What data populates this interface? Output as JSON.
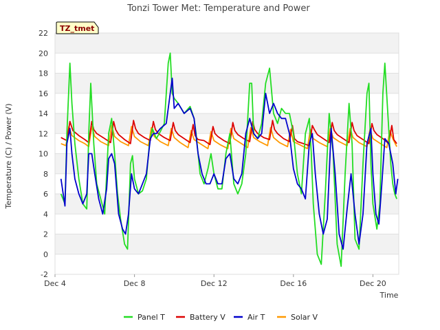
{
  "chart_data": {
    "type": "line",
    "title": "Tonzi Tower Met: Temperature and Power",
    "site_label": "TZ_tmet",
    "xlabel": "Time",
    "ylabel": "Temperature (C) / Power (V)",
    "xlim": [
      4,
      21.3
    ],
    "ylim": [
      -2,
      22
    ],
    "x_ticks": [
      4,
      8,
      12,
      16,
      20
    ],
    "x_tick_labels": [
      "Dec 4",
      "Dec 8",
      "Dec 12",
      "Dec 16",
      "Dec 20"
    ],
    "y_ticks": [
      -2,
      0,
      2,
      4,
      6,
      8,
      10,
      12,
      14,
      16,
      18,
      20,
      22
    ],
    "y_tick_labels": [
      "-2",
      "0",
      "2",
      "4",
      "6",
      "8",
      "10",
      "12",
      "14",
      "16",
      "18",
      "20",
      "22"
    ],
    "grid": "horizontal-bands",
    "legend_position": "bottom",
    "series": [
      {
        "name": "Panel T",
        "color": "#22dd22",
        "x": [
          4.3,
          4.5,
          4.6,
          4.75,
          4.85,
          5.0,
          5.2,
          5.4,
          5.6,
          5.7,
          5.8,
          5.95,
          6.1,
          6.3,
          6.5,
          6.7,
          6.85,
          7.0,
          7.15,
          7.3,
          7.5,
          7.65,
          7.8,
          7.9,
          8.0,
          8.2,
          8.4,
          8.6,
          8.75,
          8.9,
          9.0,
          9.1,
          9.3,
          9.5,
          9.7,
          9.8,
          9.9,
          10.0,
          10.2,
          10.5,
          10.8,
          11.0,
          11.1,
          11.3,
          11.5,
          11.7,
          11.85,
          12.0,
          12.2,
          12.4,
          12.6,
          12.8,
          13.0,
          13.2,
          13.4,
          13.6,
          13.8,
          13.9,
          14.0,
          14.2,
          14.4,
          14.6,
          14.8,
          15.0,
          15.2,
          15.4,
          15.6,
          15.8,
          16.0,
          16.2,
          16.4,
          16.6,
          16.8,
          16.9,
          17.0,
          17.2,
          17.4,
          17.6,
          17.8,
          18.0,
          18.2,
          18.4,
          18.6,
          18.8,
          18.95,
          19.1,
          19.3,
          19.5,
          19.7,
          19.8,
          19.9,
          20.0,
          20.2,
          20.35,
          20.5,
          20.6,
          20.75,
          20.9,
          21.0,
          21.1,
          21.2
        ],
        "values": [
          6.0,
          5.0,
          12.0,
          19.0,
          15.0,
          11.0,
          7.5,
          5.0,
          4.5,
          12.0,
          17.0,
          11.0,
          7.0,
          5.5,
          4.0,
          12.0,
          13.5,
          10.0,
          6.0,
          3.5,
          1.0,
          0.5,
          9.0,
          9.8,
          7.5,
          6.0,
          6.3,
          7.5,
          11.0,
          12.5,
          12.0,
          11.5,
          12.2,
          13.0,
          19.0,
          20.0,
          16.0,
          15.5,
          15.0,
          14.0,
          14.7,
          13.5,
          12.0,
          8.0,
          7.0,
          8.5,
          10.0,
          8.0,
          6.5,
          6.5,
          10.0,
          12.0,
          7.0,
          6.0,
          7.0,
          10.0,
          17.0,
          17.0,
          12.0,
          11.5,
          13.0,
          17.0,
          18.5,
          14.0,
          13.0,
          14.5,
          14.0,
          14.0,
          12.0,
          8.0,
          6.0,
          12.0,
          13.5,
          10.0,
          5.0,
          0.0,
          -1.0,
          6.0,
          14.0,
          10.0,
          1.0,
          -1.2,
          8.0,
          15.0,
          11.0,
          1.5,
          0.5,
          9.0,
          16.0,
          17.0,
          9.0,
          5.0,
          2.5,
          5.0,
          16.0,
          19.0,
          14.0,
          9.0,
          7.0,
          6.0,
          5.5
        ]
      },
      {
        "name": "Battery V",
        "color": "#dd0000",
        "x": [
          4.3,
          4.6,
          4.75,
          4.9,
          5.2,
          5.5,
          5.7,
          5.85,
          5.95,
          6.1,
          6.5,
          6.8,
          6.95,
          7.05,
          7.2,
          7.5,
          7.8,
          7.95,
          8.05,
          8.2,
          8.5,
          8.8,
          8.95,
          9.05,
          9.2,
          9.5,
          9.8,
          9.95,
          10.05,
          10.2,
          10.5,
          10.8,
          10.95,
          11.05,
          11.2,
          11.5,
          11.8,
          11.95,
          12.05,
          12.2,
          12.5,
          12.8,
          12.95,
          13.05,
          13.2,
          13.5,
          13.8,
          13.95,
          14.05,
          14.2,
          14.5,
          14.8,
          14.95,
          15.05,
          15.2,
          15.5,
          15.8,
          15.95,
          16.05,
          16.2,
          16.5,
          16.8,
          16.95,
          17.05,
          17.2,
          17.5,
          17.8,
          17.95,
          18.05,
          18.2,
          18.5,
          18.8,
          18.95,
          19.05,
          19.2,
          19.5,
          19.8,
          19.95,
          20.05,
          20.2,
          20.5,
          20.8,
          20.95,
          21.05,
          21.2
        ],
        "values": [
          11.6,
          11.3,
          13.2,
          12.3,
          11.8,
          11.4,
          11.1,
          13.2,
          12.4,
          12.0,
          11.5,
          11.1,
          13.2,
          12.4,
          11.9,
          11.4,
          11.0,
          13.3,
          12.5,
          12.0,
          11.6,
          11.3,
          13.2,
          12.4,
          12.0,
          11.6,
          11.3,
          13.1,
          12.3,
          11.9,
          11.5,
          11.1,
          12.9,
          11.8,
          11.4,
          11.3,
          10.9,
          12.7,
          12.0,
          11.7,
          11.3,
          11.0,
          13.1,
          12.3,
          11.9,
          11.5,
          11.2,
          13.2,
          12.4,
          12.0,
          11.6,
          11.4,
          13.3,
          12.4,
          12.0,
          11.5,
          11.2,
          12.8,
          11.5,
          11.2,
          11.0,
          10.8,
          12.8,
          12.4,
          11.9,
          11.5,
          11.1,
          13.1,
          12.3,
          11.9,
          11.5,
          11.1,
          13.1,
          12.3,
          11.8,
          11.4,
          11.0,
          13.0,
          12.3,
          11.9,
          11.5,
          11.0,
          12.8,
          11.4,
          11.0
        ]
      },
      {
        "name": "Air T",
        "color": "#0000cc",
        "x": [
          4.3,
          4.5,
          4.6,
          4.75,
          4.85,
          5.0,
          5.2,
          5.4,
          5.6,
          5.7,
          5.85,
          6.0,
          6.2,
          6.4,
          6.6,
          6.7,
          6.85,
          7.0,
          7.2,
          7.4,
          7.55,
          7.7,
          7.85,
          8.0,
          8.2,
          8.4,
          8.6,
          8.8,
          8.95,
          9.1,
          9.3,
          9.6,
          9.8,
          9.9,
          10.0,
          10.2,
          10.5,
          10.8,
          11.0,
          11.2,
          11.4,
          11.6,
          11.8,
          12.0,
          12.2,
          12.4,
          12.6,
          12.8,
          13.0,
          13.2,
          13.4,
          13.6,
          13.8,
          14.0,
          14.2,
          14.4,
          14.6,
          14.8,
          15.0,
          15.2,
          15.4,
          15.6,
          15.8,
          16.0,
          16.2,
          16.4,
          16.6,
          16.8,
          16.95,
          17.1,
          17.3,
          17.5,
          17.7,
          17.9,
          18.1,
          18.3,
          18.5,
          18.7,
          18.9,
          19.1,
          19.3,
          19.5,
          19.7,
          19.9,
          20.0,
          20.15,
          20.3,
          20.45,
          20.6,
          20.8,
          21.0,
          21.15,
          21.25
        ],
        "values": [
          7.5,
          4.8,
          11.0,
          12.5,
          10.0,
          7.5,
          6.0,
          5.0,
          6.0,
          10.0,
          10.0,
          8.0,
          5.5,
          4.0,
          6.5,
          9.5,
          10.0,
          9.0,
          4.0,
          2.5,
          2.0,
          4.0,
          8.0,
          6.5,
          6.0,
          7.0,
          8.0,
          11.5,
          12.0,
          12.0,
          12.5,
          13.0,
          16.0,
          17.5,
          14.5,
          15.0,
          14.0,
          14.5,
          13.5,
          10.0,
          8.0,
          7.0,
          7.0,
          8.0,
          7.0,
          7.0,
          9.5,
          10.0,
          7.5,
          7.0,
          8.0,
          12.0,
          13.5,
          12.0,
          11.5,
          12.0,
          16.0,
          14.0,
          15.0,
          14.0,
          13.5,
          13.5,
          12.0,
          8.5,
          7.0,
          6.5,
          5.5,
          11.0,
          12.0,
          8.0,
          4.0,
          2.0,
          3.5,
          12.5,
          8.0,
          2.0,
          0.5,
          4.5,
          8.0,
          4.0,
          1.0,
          4.0,
          11.0,
          12.5,
          8.0,
          4.0,
          3.0,
          7.0,
          11.5,
          11.0,
          9.0,
          6.0,
          7.5
        ]
      },
      {
        "name": "Solar V",
        "color": "#ff9900",
        "x": [
          4.3,
          4.55,
          4.7,
          4.85,
          5.2,
          5.5,
          5.7,
          5.85,
          6.0,
          6.3,
          6.7,
          6.85,
          7.0,
          7.3,
          7.7,
          7.85,
          8.0,
          8.3,
          8.7,
          8.85,
          9.0,
          9.3,
          9.7,
          9.85,
          10.0,
          10.3,
          10.7,
          10.85,
          11.0,
          11.3,
          11.7,
          11.85,
          12.0,
          12.3,
          12.7,
          12.85,
          13.0,
          13.3,
          13.7,
          13.85,
          14.0,
          14.3,
          14.7,
          14.85,
          15.0,
          15.3,
          15.7,
          15.85,
          16.0,
          16.3,
          16.7,
          16.85,
          17.0,
          17.3,
          17.7,
          17.85,
          18.0,
          18.3,
          18.7,
          18.85,
          19.0,
          19.3,
          19.7,
          19.85,
          20.0,
          20.3,
          20.7,
          20.85,
          21.0,
          21.2
        ],
        "values": [
          11.0,
          10.8,
          12.7,
          11.8,
          11.3,
          11.0,
          10.7,
          12.7,
          11.7,
          11.2,
          10.8,
          12.8,
          11.7,
          11.2,
          10.8,
          12.7,
          11.7,
          11.2,
          10.8,
          12.6,
          11.7,
          11.2,
          10.8,
          12.5,
          11.6,
          11.1,
          10.6,
          12.3,
          11.4,
          11.0,
          10.5,
          12.2,
          11.3,
          10.9,
          10.5,
          12.5,
          11.5,
          11.1,
          10.6,
          12.6,
          11.6,
          11.2,
          10.8,
          12.6,
          11.6,
          11.1,
          10.7,
          12.4,
          11.2,
          10.9,
          10.5,
          12.4,
          11.5,
          11.1,
          10.7,
          12.5,
          11.6,
          11.2,
          10.8,
          12.5,
          11.6,
          11.1,
          10.7,
          12.4,
          11.5,
          11.1,
          10.6,
          12.3,
          11.5,
          10.7
        ]
      }
    ]
  }
}
